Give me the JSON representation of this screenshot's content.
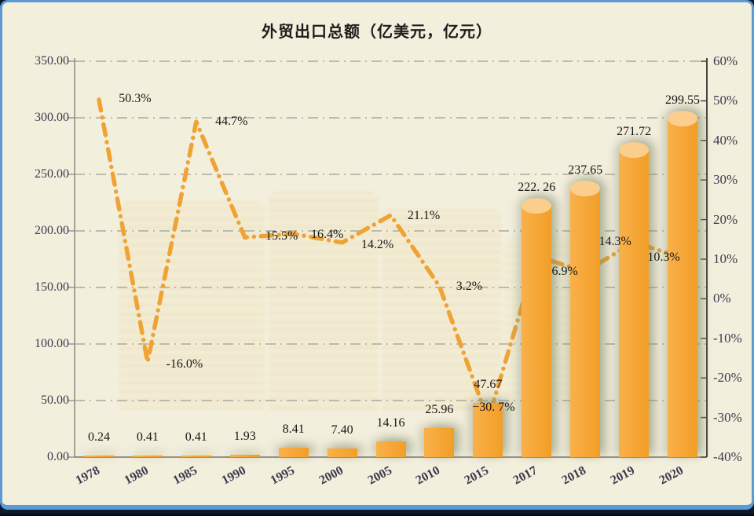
{
  "title": {
    "text": "外贸出口总额（亿美元，亿元）"
  },
  "colors": {
    "background": "#F3EFDD",
    "frame_border": "#5B9BD5",
    "bottom_strip": "#0C1A30",
    "bar": "#F6A637",
    "bar_top": "#FBCE8E",
    "line": "#F0A334",
    "grid": "#9C9C94",
    "left_axis_line": "#8A8A82",
    "right_axis_line": "#44443E",
    "axis_text": "#3A3A4E",
    "label_text": "#161616"
  },
  "chart_data": {
    "type": "combo-bar-line",
    "title": "外贸出口总额（亿美元，亿元）",
    "categories": [
      "1978",
      "1980",
      "1985",
      "1990",
      "1995",
      "2000",
      "2005",
      "2010",
      "2015",
      "2017",
      "2018",
      "2019",
      "2020"
    ],
    "left_axis": {
      "min": 0,
      "max": 350,
      "step": 50,
      "ticks": [
        "350.00",
        "300.00",
        "250.00",
        "200.00",
        "150.00",
        "100.00",
        "50.00",
        "0.00"
      ]
    },
    "right_axis": {
      "min": -40,
      "max": 60,
      "step": 10,
      "ticks": [
        "60%",
        "50%",
        "40%",
        "30%",
        "20%",
        "10%",
        "0%",
        "-10%",
        "-20%",
        "-30%",
        "-40%"
      ]
    },
    "grid": {
      "style": "dash-dot",
      "orientation": "horizontal"
    },
    "legend": "none",
    "series": [
      {
        "name": "export-total-bar",
        "type": "bar",
        "axis": "left",
        "values": [
          0.24,
          0.41,
          0.41,
          1.93,
          8.41,
          7.4,
          14.16,
          25.96,
          47.67,
          222.26,
          237.65,
          271.72,
          299.55
        ],
        "labels": [
          "0.24",
          "0.41",
          "0.41",
          "1.93",
          "8.41",
          "7.40",
          "14.16",
          "25.96",
          "47.67",
          "222. 26",
          "237.65",
          "271.72",
          "299.55"
        ]
      },
      {
        "name": "growth-rate-line",
        "type": "line",
        "axis": "right",
        "dash": "dash-dot",
        "values": [
          50.3,
          -16.0,
          44.7,
          15.5,
          16.4,
          14.2,
          21.1,
          3.2,
          -30.7,
          10.7,
          6.9,
          14.3,
          10.3
        ],
        "labels": [
          "50.3%",
          "-16.0%",
          "44.7%",
          "15.5%",
          "16.4%",
          "14.2%",
          "21.1%",
          "3.2%",
          "−30. 7%",
          "",
          "6.9%",
          "14.3%",
          "10.3%"
        ]
      }
    ]
  }
}
